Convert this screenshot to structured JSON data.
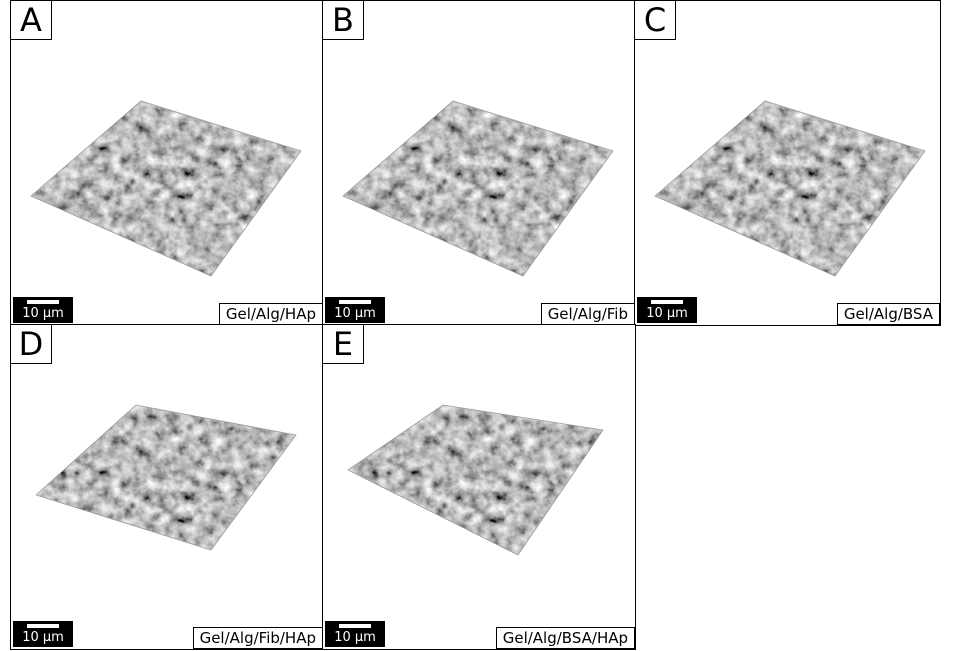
{
  "panels": [
    {
      "letter": "A",
      "label": "Gel/Alg/HAp",
      "scale": "10 µm"
    },
    {
      "letter": "B",
      "label": "Gel/Alg/Fib",
      "scale": "10 µm"
    },
    {
      "letter": "C",
      "label": "Gel/Alg/BSA",
      "scale": "10 µm"
    },
    {
      "letter": "D",
      "label": "Gel/Alg/Fib/HAp",
      "scale": "10 µm"
    },
    {
      "letter": "E",
      "label": "Gel/Alg/BSA/HAp",
      "scale": "10 µm"
    }
  ]
}
